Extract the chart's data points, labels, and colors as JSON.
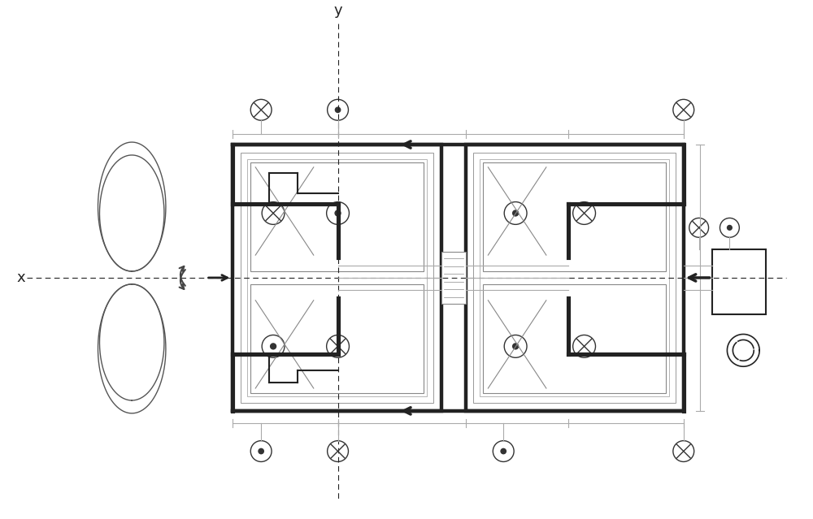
{
  "bg_color": "#ffffff",
  "gray_color": "#888888",
  "dark_color": "#222222",
  "light_gray": "#aaaaaa",
  "fig_width": 10.0,
  "fig_height": 6.39,
  "dpi": 100
}
